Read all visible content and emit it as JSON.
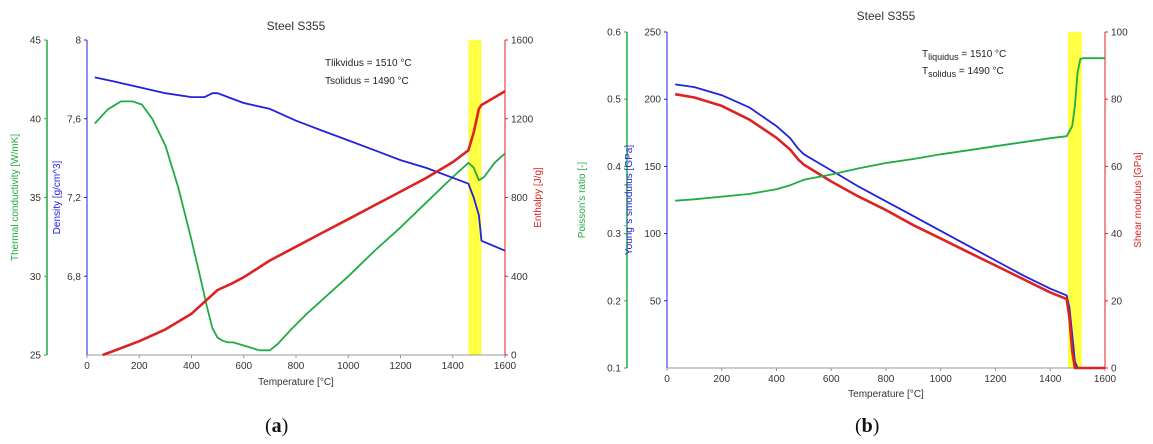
{
  "chart_data": [
    {
      "id": "a",
      "type": "line",
      "title": "Steel S355",
      "panel_label_open": "(",
      "panel_label": "a",
      "panel_label_close": ")",
      "xlabel": "Temperature [°C]",
      "xlim": [
        0,
        1600
      ],
      "xticks": [
        0,
        200,
        400,
        600,
        800,
        1000,
        1200,
        1400,
        1600
      ],
      "axes": {
        "outer_left": {
          "label": "Thermal conductivity [W/mK]",
          "color": "#22aa44",
          "lim": [
            25,
            45
          ],
          "ticks": [
            25,
            30,
            35,
            40,
            45
          ]
        },
        "left": {
          "label": "Density [g/cm^3]",
          "color": "#2222dd",
          "lim": [
            6.4,
            8
          ],
          "ticks": [
            "6,8",
            "7,2",
            "7,6",
            "8"
          ],
          "tick_values": [
            6.8,
            7.2,
            7.6,
            8.0
          ]
        },
        "right": {
          "label": "Enthalpy [J/g]",
          "color": "#dd2222",
          "lim": [
            0,
            1600
          ],
          "ticks": [
            0,
            400,
            800,
            1200,
            1600
          ]
        }
      },
      "annotations": [
        "Tlikvidus = 1510 °C",
        "Tsolidus = 1490 °C"
      ],
      "band": {
        "x": [
          1460,
          1510
        ],
        "color": "#ffff44"
      },
      "series": [
        {
          "axis": "outer_left",
          "color": "#22aa44",
          "x": [
            30,
            80,
            130,
            175,
            210,
            250,
            300,
            350,
            400,
            430,
            460,
            480,
            500,
            520,
            540,
            560,
            620,
            660,
            700,
            730,
            780,
            840,
            900,
            1000,
            1100,
            1200,
            1300,
            1400,
            1460,
            1480,
            1500,
            1520,
            1560,
            1600
          ],
          "y": [
            39.7,
            40.6,
            41.1,
            41.1,
            40.9,
            40.0,
            38.3,
            35.6,
            32.3,
            30.2,
            28.0,
            26.7,
            26.1,
            25.9,
            25.8,
            25.8,
            25.5,
            25.3,
            25.3,
            25.7,
            26.6,
            27.6,
            28.5,
            30.0,
            31.6,
            33.1,
            34.7,
            36.3,
            37.2,
            36.9,
            36.1,
            36.3,
            37.2,
            37.8
          ]
        },
        {
          "axis": "left",
          "color": "#2222dd",
          "x": [
            30,
            100,
            200,
            300,
            400,
            450,
            480,
            500,
            520,
            560,
            600,
            700,
            800,
            900,
            1000,
            1100,
            1200,
            1300,
            1400,
            1460,
            1480,
            1500,
            1510,
            1600
          ],
          "y": [
            7.81,
            7.79,
            7.76,
            7.73,
            7.71,
            7.71,
            7.73,
            7.73,
            7.72,
            7.7,
            7.68,
            7.65,
            7.59,
            7.54,
            7.49,
            7.44,
            7.39,
            7.35,
            7.3,
            7.27,
            7.2,
            7.11,
            6.98,
            6.93
          ]
        },
        {
          "axis": "right",
          "color": "#dd2222",
          "x": [
            60,
            100,
            200,
            300,
            400,
            450,
            500,
            550,
            600,
            700,
            800,
            900,
            1000,
            1100,
            1200,
            1300,
            1400,
            1460,
            1480,
            1500,
            1510,
            1600
          ],
          "y": [
            0,
            20,
            70,
            130,
            210,
            270,
            330,
            360,
            395,
            480,
            550,
            620,
            690,
            760,
            830,
            900,
            980,
            1040,
            1130,
            1250,
            1270,
            1340
          ]
        }
      ]
    },
    {
      "id": "b",
      "type": "line",
      "title": "Steel S355",
      "panel_label_open": "(",
      "panel_label": "b",
      "panel_label_close": ")",
      "xlabel": "Temperature [°C]",
      "xlim": [
        0,
        1600
      ],
      "xticks": [
        0,
        200,
        400,
        600,
        800,
        1000,
        1200,
        1400,
        1600
      ],
      "axes": {
        "outer_left": {
          "label": "Poisson's ratio [-]",
          "color": "#22aa44",
          "lim": [
            0.1,
            0.6
          ],
          "ticks": [
            "0.1",
            "0.2",
            "0.3",
            "0.4",
            "0.5",
            "0.6"
          ],
          "tick_values": [
            0.1,
            0.2,
            0.3,
            0.4,
            0.5,
            0.6
          ]
        },
        "left": {
          "label": "Young´s smodulus [GPa]",
          "color": "#2222dd",
          "lim": [
            0,
            250
          ],
          "ticks": [
            50,
            100,
            150,
            200,
            250
          ]
        },
        "right": {
          "label": "Shear modulus [GPa]",
          "color": "#dd2222",
          "lim": [
            0,
            100
          ],
          "ticks": [
            0,
            20,
            40,
            60,
            80,
            100
          ]
        }
      },
      "annotations": [
        {
          "base": "T",
          "sub": "liquidus",
          "rest": " = 1510 °C"
        },
        {
          "base": "T",
          "sub": "solidus",
          "rest": " = 1490 °C"
        }
      ],
      "band": {
        "x": [
          1465,
          1515
        ],
        "color": "#ffff44"
      },
      "series": [
        {
          "axis": "left",
          "color": "#2222dd",
          "x": [
            30,
            100,
            200,
            300,
            400,
            450,
            480,
            500,
            550,
            600,
            700,
            800,
            900,
            1000,
            1100,
            1200,
            1300,
            1400,
            1460,
            1470,
            1480,
            1490,
            1500
          ],
          "y": [
            211,
            209,
            203,
            194,
            180,
            171,
            163,
            159,
            153,
            147,
            135,
            124,
            113,
            102,
            91,
            80,
            69,
            59,
            54,
            45,
            25,
            5,
            0
          ]
        },
        {
          "axis": "right",
          "color": "#dd2222",
          "x": [
            30,
            100,
            200,
            300,
            400,
            450,
            480,
            500,
            550,
            600,
            700,
            800,
            900,
            1000,
            1100,
            1200,
            1300,
            1400,
            1460,
            1470,
            1480,
            1490,
            1500,
            1600
          ],
          "y": [
            81.5,
            80.5,
            78,
            74,
            68.5,
            65,
            62,
            60.5,
            58,
            55.5,
            51,
            47,
            42.5,
            38.5,
            34.5,
            30.5,
            26.5,
            22.5,
            20.5,
            15,
            5,
            0,
            0,
            0
          ]
        },
        {
          "axis": "outer_left",
          "color": "#22aa44",
          "x": [
            30,
            100,
            200,
            300,
            400,
            450,
            500,
            600,
            700,
            800,
            900,
            1000,
            1100,
            1200,
            1300,
            1400,
            1460,
            1480,
            1490,
            1500,
            1510,
            1520,
            1600
          ],
          "y": [
            0.349,
            0.351,
            0.355,
            0.359,
            0.366,
            0.372,
            0.38,
            0.388,
            0.397,
            0.405,
            0.411,
            0.418,
            0.424,
            0.43,
            0.436,
            0.442,
            0.445,
            0.46,
            0.49,
            0.54,
            0.56,
            0.561,
            0.561
          ]
        }
      ]
    }
  ]
}
